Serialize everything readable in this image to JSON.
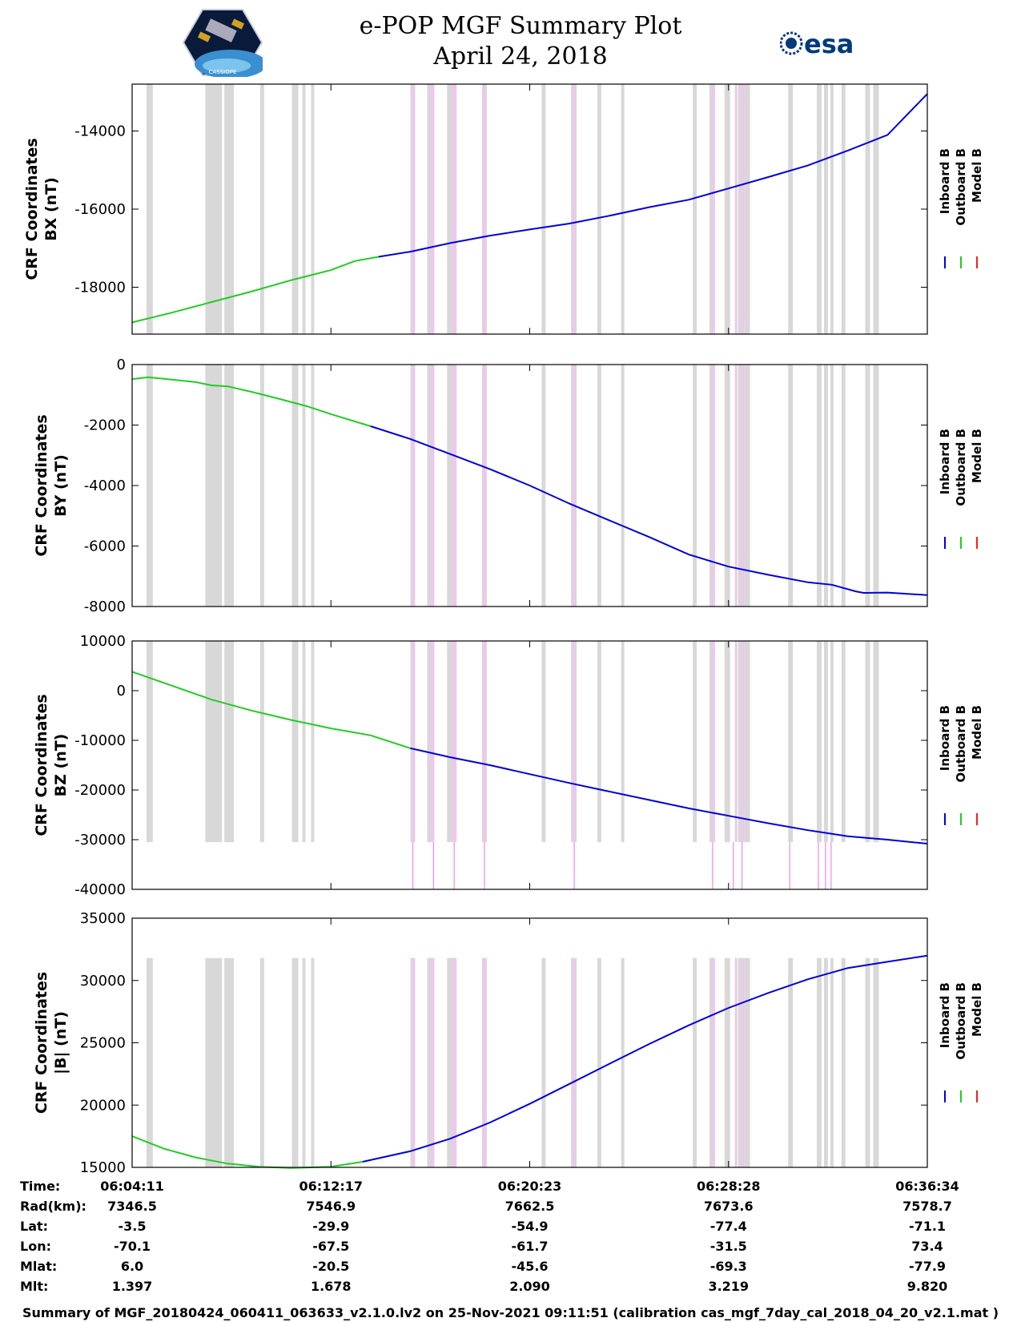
{
  "header": {
    "title": "e-POP MGF Summary Plot",
    "date": "April 24, 2018",
    "left_logo_text": "CASSIOPE",
    "right_logo_text": "esa"
  },
  "colors": {
    "inboard": "#0000dd",
    "outboard": "#22cc22",
    "model": "#ee2222",
    "gray_band": "#d8d8d8",
    "pink_band": "#ecc8ec",
    "pink_line": "#ee88ee"
  },
  "chart_data": {
    "type": "line",
    "x_range": [
      0,
      100
    ],
    "x_tick_positions": [
      0,
      25,
      50,
      75,
      100
    ],
    "x_tick_labels": [
      "06:04:11",
      "06:12:17",
      "06:20:23",
      "06:28:28",
      "06:36:34"
    ],
    "legend": [
      "Inboard B",
      "Outboard B",
      "Model B"
    ],
    "gray_bands": [
      [
        1.8,
        2.6
      ],
      [
        9.2,
        11.3
      ],
      [
        11.6,
        12.8
      ],
      [
        16.1,
        16.6
      ],
      [
        20.1,
        20.9
      ],
      [
        21.4,
        21.8
      ],
      [
        22.5,
        22.9
      ],
      [
        35.0,
        35.6
      ],
      [
        37.1,
        38.0
      ],
      [
        39.6,
        40.8
      ],
      [
        44.0,
        44.6
      ],
      [
        51.5,
        52.0
      ],
      [
        55.2,
        55.9
      ],
      [
        58.5,
        59.0
      ],
      [
        61.5,
        61.9
      ],
      [
        70.5,
        71.0
      ],
      [
        72.6,
        73.2
      ],
      [
        74.5,
        75.2
      ],
      [
        76.2,
        76.8
      ],
      [
        77.0,
        77.7
      ],
      [
        82.5,
        83.1
      ],
      [
        86.1,
        86.7
      ],
      [
        87.0,
        87.5
      ],
      [
        87.8,
        88.2
      ],
      [
        89.2,
        89.7
      ],
      [
        92.2,
        92.8
      ],
      [
        93.2,
        93.9
      ]
    ],
    "pink_bands": [
      [
        35.1,
        35.5
      ],
      [
        37.5,
        38.0
      ],
      [
        40.2,
        40.8
      ],
      [
        44.1,
        44.5
      ],
      [
        55.4,
        55.8
      ],
      [
        72.9,
        73.3
      ],
      [
        75.8,
        76.1
      ],
      [
        76.6,
        77.0
      ]
    ],
    "pink_lines": [
      35.3,
      37.9,
      40.5,
      44.3,
      55.6,
      73.0,
      75.6,
      76.7,
      82.7,
      86.3,
      87.2,
      87.9
    ],
    "panels": [
      {
        "id": "bx",
        "ylabel_line1": "CRF Coordinates",
        "ylabel_line2": "BX (nT)",
        "ylim": [
          -19200,
          -12800
        ],
        "yticks": [
          -18000,
          -16000,
          -14000
        ],
        "ytick_labels": [
          "-18000",
          "-16000",
          "-14000"
        ],
        "band_range": [
          -19200,
          -12800
        ],
        "switch_x": 31,
        "points": [
          [
            0,
            -18900
          ],
          [
            5,
            -18650
          ],
          [
            10,
            -18380
          ],
          [
            15,
            -18110
          ],
          [
            20,
            -17820
          ],
          [
            25,
            -17560
          ],
          [
            28,
            -17330
          ],
          [
            31,
            -17220
          ],
          [
            35,
            -17090
          ],
          [
            40,
            -16870
          ],
          [
            45,
            -16680
          ],
          [
            50,
            -16520
          ],
          [
            55,
            -16370
          ],
          [
            60,
            -16170
          ],
          [
            65,
            -15950
          ],
          [
            70,
            -15760
          ],
          [
            75,
            -15470
          ],
          [
            80,
            -15180
          ],
          [
            85,
            -14880
          ],
          [
            90,
            -14500
          ],
          [
            95,
            -14100
          ],
          [
            100,
            -13050
          ]
        ]
      },
      {
        "id": "by",
        "ylabel_line1": "CRF Coordinates",
        "ylabel_line2": "BY (nT)",
        "ylim": [
          -8000,
          0
        ],
        "yticks": [
          -8000,
          -6000,
          -4000,
          -2000,
          0
        ],
        "ytick_labels": [
          "-8000",
          "-6000",
          "-4000",
          "-2000",
          "0"
        ],
        "band_range": [
          -8000,
          0
        ],
        "switch_x": 30,
        "points": [
          [
            0,
            -480
          ],
          [
            2,
            -420
          ],
          [
            4,
            -470
          ],
          [
            8,
            -580
          ],
          [
            10,
            -690
          ],
          [
            12,
            -720
          ],
          [
            15,
            -900
          ],
          [
            18,
            -1100
          ],
          [
            22,
            -1380
          ],
          [
            25,
            -1640
          ],
          [
            30,
            -2040
          ],
          [
            35,
            -2460
          ],
          [
            40,
            -2960
          ],
          [
            45,
            -3460
          ],
          [
            50,
            -4000
          ],
          [
            55,
            -4600
          ],
          [
            60,
            -5150
          ],
          [
            65,
            -5700
          ],
          [
            70,
            -6280
          ],
          [
            75,
            -6680
          ],
          [
            80,
            -6950
          ],
          [
            85,
            -7200
          ],
          [
            88,
            -7280
          ],
          [
            91,
            -7500
          ],
          [
            92,
            -7550
          ],
          [
            95,
            -7540
          ],
          [
            100,
            -7620
          ]
        ]
      },
      {
        "id": "bz",
        "ylabel_line1": "CRF Coordinates",
        "ylabel_line2": "BZ (nT)",
        "ylim": [
          -40000,
          10000
        ],
        "yticks": [
          -40000,
          -30000,
          -20000,
          -10000,
          0,
          10000
        ],
        "ytick_labels": [
          "-40000",
          "-30000",
          "-20000",
          "-10000",
          "0",
          "10000"
        ],
        "band_range": [
          -30500,
          10000
        ],
        "pink_line_range": [
          -40000,
          -30500
        ],
        "switch_x": 35,
        "points": [
          [
            0,
            3800
          ],
          [
            5,
            1000
          ],
          [
            10,
            -1800
          ],
          [
            15,
            -4000
          ],
          [
            20,
            -5900
          ],
          [
            25,
            -7600
          ],
          [
            30,
            -9000
          ],
          [
            35,
            -11600
          ],
          [
            40,
            -13400
          ],
          [
            45,
            -15000
          ],
          [
            50,
            -16800
          ],
          [
            55,
            -18600
          ],
          [
            60,
            -20300
          ],
          [
            65,
            -22000
          ],
          [
            70,
            -23700
          ],
          [
            75,
            -25200
          ],
          [
            80,
            -26700
          ],
          [
            85,
            -28100
          ],
          [
            90,
            -29300
          ],
          [
            95,
            -30000
          ],
          [
            100,
            -30800
          ]
        ]
      },
      {
        "id": "bmag",
        "ylabel_line1": "CRF Coordinates",
        "ylabel_line2": "|B| (nT)",
        "ylim": [
          15000,
          35000
        ],
        "yticks": [
          15000,
          20000,
          25000,
          30000,
          35000
        ],
        "ytick_labels": [
          "15000",
          "20000",
          "25000",
          "30000",
          "35000"
        ],
        "band_range": [
          15000,
          31800
        ],
        "switch_x": 29,
        "points": [
          [
            0,
            17500
          ],
          [
            4,
            16500
          ],
          [
            8,
            15800
          ],
          [
            12,
            15300
          ],
          [
            16,
            15050
          ],
          [
            20,
            14950
          ],
          [
            25,
            15050
          ],
          [
            29,
            15450
          ],
          [
            35,
            16300
          ],
          [
            40,
            17300
          ],
          [
            45,
            18600
          ],
          [
            50,
            20100
          ],
          [
            55,
            21700
          ],
          [
            60,
            23300
          ],
          [
            65,
            24900
          ],
          [
            70,
            26400
          ],
          [
            75,
            27800
          ],
          [
            80,
            29000
          ],
          [
            85,
            30100
          ],
          [
            90,
            31000
          ],
          [
            95,
            31500
          ],
          [
            100,
            32000
          ]
        ]
      }
    ]
  },
  "info_table": {
    "rows": [
      {
        "label": "Time:",
        "values": [
          "06:04:11",
          "06:12:17",
          "06:20:23",
          "06:28:28",
          "06:36:34"
        ]
      },
      {
        "label": "Rad(km):",
        "values": [
          "7346.5",
          "7546.9",
          "7662.5",
          "7673.6",
          "7578.7"
        ]
      },
      {
        "label": "Lat:",
        "values": [
          "-3.5",
          "-29.9",
          "-54.9",
          "-77.4",
          "-71.1"
        ]
      },
      {
        "label": "Lon:",
        "values": [
          "-70.1",
          "-67.5",
          "-61.7",
          "-31.5",
          "73.4"
        ]
      },
      {
        "label": "Mlat:",
        "values": [
          "6.0",
          "-20.5",
          "-45.6",
          "-69.3",
          "-77.9"
        ]
      },
      {
        "label": "Mlt:",
        "values": [
          "1.397",
          "1.678",
          "2.090",
          "3.219",
          "9.820"
        ]
      }
    ]
  },
  "footer": "Summary of MGF_20180424_060411_063633_v2.1.0.lv2 on 25-Nov-2021 09:11:51 (calibration cas_mgf_7day_cal_2018_04_20_v2.1.mat )"
}
